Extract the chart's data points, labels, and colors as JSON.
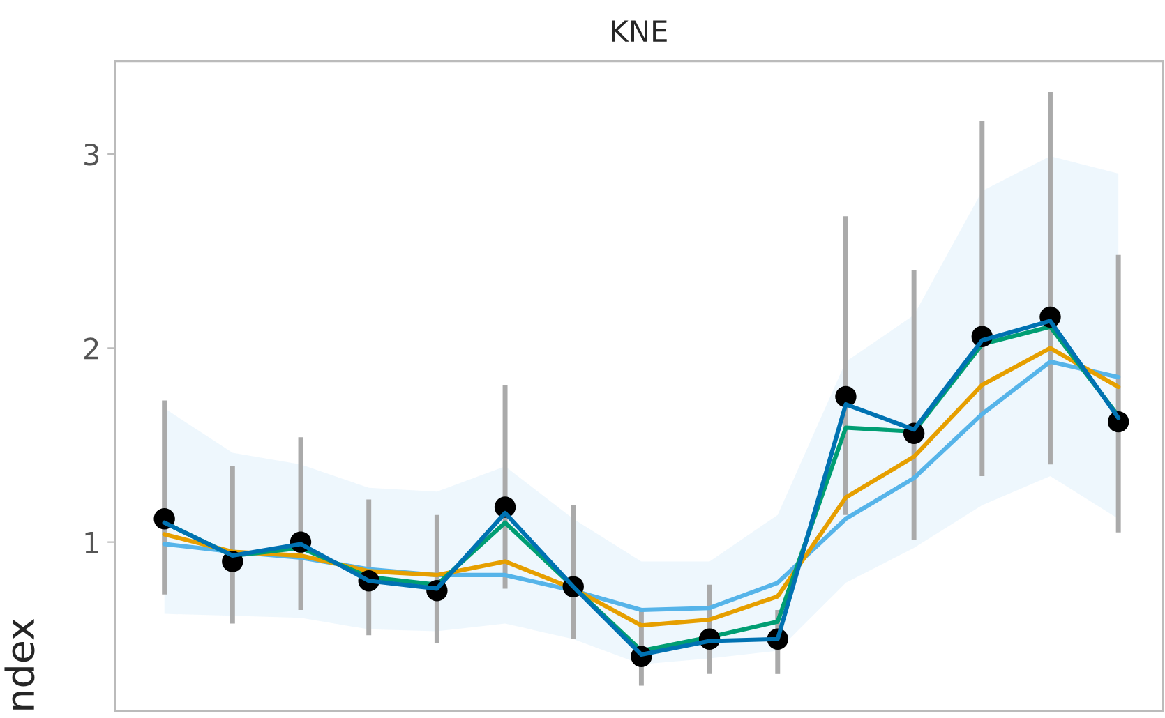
{
  "chart_data": {
    "type": "line",
    "title": "KNE",
    "ylabel": "ndex",
    "categories": [
      null,
      null,
      null,
      null,
      null,
      null,
      null,
      null,
      null,
      null,
      null,
      null,
      null,
      null,
      null
    ],
    "ylim": [
      0.13,
      3.48
    ],
    "yticks": [
      1,
      2,
      3
    ],
    "grid": false,
    "legend": false,
    "tick_labels": "y",
    "series": [
      {
        "color": "#56b4e9",
        "values": [
          0.99,
          0.95,
          0.92,
          0.86,
          0.83,
          0.83,
          0.75,
          0.65,
          0.66,
          0.79,
          1.12,
          1.33,
          1.66,
          1.93,
          1.85
        ],
        "lower": [
          0.63,
          0.62,
          0.61,
          0.55,
          0.54,
          0.58,
          0.5,
          0.37,
          0.4,
          0.44,
          0.79,
          0.97,
          1.19,
          1.34,
          1.12
        ],
        "upper": [
          1.69,
          1.46,
          1.4,
          1.28,
          1.26,
          1.39,
          1.12,
          0.9,
          0.9,
          1.14,
          1.93,
          2.17,
          2.81,
          2.99,
          2.9
        ]
      },
      {
        "color": "#e69f00",
        "values": [
          1.04,
          0.95,
          0.93,
          0.85,
          0.83,
          0.9,
          0.76,
          0.57,
          0.6,
          0.72,
          1.23,
          1.44,
          1.81,
          2.0,
          1.8
        ]
      },
      {
        "color": "#009e73",
        "values": [
          1.1,
          0.93,
          0.97,
          0.82,
          0.78,
          1.1,
          0.77,
          0.44,
          0.51,
          0.59,
          1.59,
          1.57,
          2.02,
          2.11,
          1.65
        ]
      },
      {
        "type": "scatter",
        "color": "#000000",
        "marker": "circle",
        "values": [
          1.12,
          0.9,
          1.0,
          0.8,
          0.75,
          1.18,
          0.77,
          0.41,
          0.5,
          0.5,
          1.75,
          1.56,
          2.06,
          2.16,
          1.62
        ],
        "errors": [
          [
            0.73,
            1.73
          ],
          [
            0.58,
            1.39
          ],
          [
            0.65,
            1.54
          ],
          [
            0.52,
            1.22
          ],
          [
            0.48,
            1.14
          ],
          [
            0.76,
            1.81
          ],
          [
            0.5,
            1.19
          ],
          [
            0.26,
            0.65
          ],
          [
            0.32,
            0.78
          ],
          [
            0.32,
            0.65
          ],
          [
            1.14,
            2.68
          ],
          [
            1.01,
            2.4
          ],
          [
            1.34,
            3.17
          ],
          [
            1.4,
            3.32
          ],
          [
            1.05,
            2.48
          ]
        ]
      },
      {
        "color": "#0072b2",
        "values": [
          1.1,
          0.93,
          0.99,
          0.8,
          0.76,
          1.15,
          0.77,
          0.42,
          0.49,
          0.5,
          1.71,
          1.58,
          2.04,
          2.14,
          1.64
        ]
      }
    ]
  }
}
